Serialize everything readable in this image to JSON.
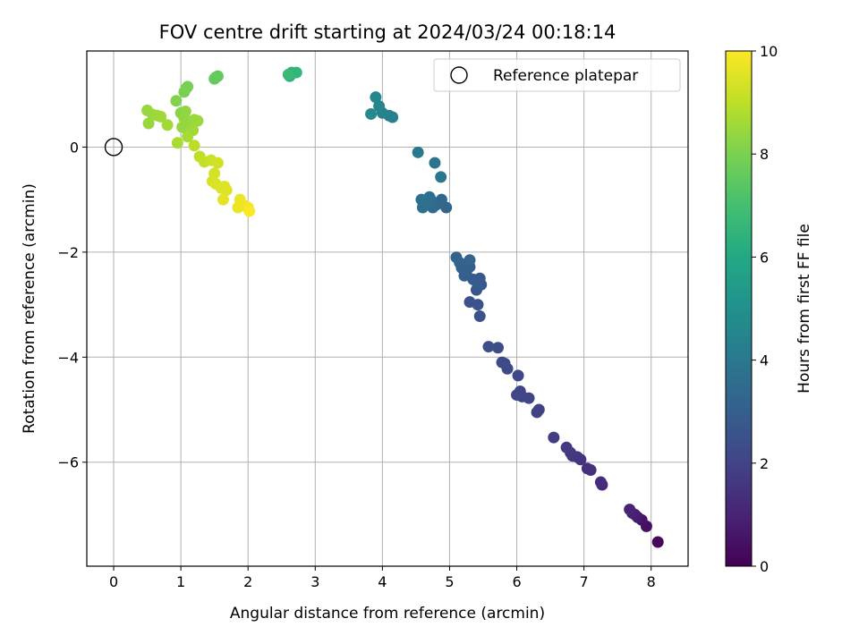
{
  "chart_data": {
    "type": "scatter",
    "title": "FOV centre drift starting at 2024/03/24 00:18:14",
    "xlabel": "Angular distance from reference (arcmin)",
    "ylabel": "Rotation from reference (arcmin)",
    "xlim": [
      -0.4,
      8.55
    ],
    "ylim": [
      -7.98,
      1.83
    ],
    "xticks": [
      0,
      1,
      2,
      3,
      4,
      5,
      6,
      7,
      8
    ],
    "yticks": [
      -6,
      -4,
      -2,
      0
    ],
    "grid": true,
    "legend": {
      "placement": "top-right",
      "entries": [
        "Reference platepar"
      ]
    },
    "reference_point": {
      "x": 0,
      "y": 0
    },
    "colorbar": {
      "label": "Hours from first FF file",
      "min": 0,
      "max": 10,
      "ticks": [
        0,
        2,
        4,
        6,
        8,
        10
      ],
      "colormap": "viridis"
    },
    "series": [
      {
        "x": [
          8.1,
          7.93,
          7.86,
          7.8,
          7.76,
          7.72,
          7.68,
          7.27,
          7.25,
          7.1,
          7.05,
          6.95,
          6.9,
          6.83,
          6.8,
          6.74,
          6.55
        ],
        "y": [
          -7.52,
          -7.22,
          -7.1,
          -7.05,
          -7.0,
          -6.97,
          -6.9,
          -6.43,
          -6.38,
          -6.15,
          -6.12,
          -5.95,
          -5.9,
          -5.88,
          -5.82,
          -5.72,
          -5.53
        ],
        "hours": [
          0.2,
          0.4,
          0.55,
          0.7,
          0.8,
          0.9,
          1.0,
          1.2,
          1.25,
          1.35,
          1.4,
          1.5,
          1.55,
          1.6,
          1.65,
          1.7,
          1.8
        ]
      },
      {
        "x": [
          6.33,
          6.3,
          6.18,
          6.08,
          6.05,
          6.0,
          6.02,
          5.86,
          5.82,
          5.78,
          5.72,
          5.58,
          5.45,
          5.42,
          5.4,
          5.3,
          5.47,
          5.45,
          5.42,
          5.4,
          5.35,
          5.3,
          5.25,
          5.22,
          5.18,
          5.15,
          5.1
        ],
        "y": [
          -5.0,
          -5.05,
          -4.78,
          -4.75,
          -4.65,
          -4.72,
          -4.35,
          -4.22,
          -4.12,
          -4.1,
          -3.82,
          -3.8,
          -3.22,
          -3.0,
          -2.72,
          -2.95,
          -2.62,
          -2.5,
          -2.65,
          -2.55,
          -2.52,
          -2.28,
          -2.38,
          -2.45,
          -2.3,
          -2.2,
          -2.1
        ],
        "hours": [
          1.9,
          1.95,
          2.0,
          2.05,
          2.1,
          2.1,
          2.15,
          2.2,
          2.25,
          2.3,
          2.35,
          2.4,
          2.5,
          2.55,
          2.6,
          2.6,
          2.7,
          2.75,
          2.8,
          2.85,
          2.9,
          2.95,
          3.0,
          3.0,
          3.05,
          3.1,
          3.15
        ]
      },
      {
        "x": [
          5.3,
          4.95,
          4.88,
          4.8,
          4.75,
          4.72,
          4.7,
          4.65,
          4.6,
          4.58,
          4.78,
          4.87,
          4.53,
          4.15,
          4.1,
          4.0,
          3.95,
          3.9,
          3.83
        ],
        "y": [
          -2.15,
          -1.15,
          -1.0,
          -1.1,
          -1.15,
          -1.0,
          -0.95,
          -1.05,
          -1.15,
          -1.0,
          -0.3,
          -0.57,
          -0.1,
          0.57,
          0.6,
          0.65,
          0.78,
          0.95,
          0.63
        ],
        "hours": [
          3.2,
          3.3,
          3.35,
          3.4,
          3.45,
          3.5,
          3.55,
          3.6,
          3.65,
          3.7,
          3.8,
          3.9,
          4.0,
          4.2,
          4.3,
          4.4,
          4.5,
          4.6,
          4.7
        ]
      },
      {
        "x": [
          2.62,
          2.65,
          2.72,
          2.6,
          1.52,
          1.55,
          1.5,
          1.1,
          1.08,
          1.05
        ],
        "y": [
          1.35,
          1.42,
          1.42,
          1.38,
          1.33,
          1.35,
          1.3,
          1.15,
          1.12,
          1.05
        ],
        "hours": [
          6.2,
          6.3,
          6.5,
          6.7,
          7.5,
          7.55,
          7.6,
          7.9,
          7.95,
          8.0
        ]
      },
      {
        "x": [
          0.93,
          1.0,
          1.05,
          1.12,
          1.2,
          1.25,
          1.18,
          1.1,
          0.95,
          0.8,
          0.7,
          0.65,
          0.58,
          0.5,
          0.52,
          1.02,
          1.07
        ],
        "y": [
          0.88,
          0.65,
          0.55,
          0.48,
          0.52,
          0.5,
          0.32,
          0.2,
          0.08,
          0.42,
          0.58,
          0.6,
          0.62,
          0.7,
          0.45,
          0.38,
          0.68
        ],
        "hours": [
          8.1,
          8.2,
          8.3,
          8.4,
          8.45,
          8.5,
          8.6,
          8.65,
          8.7,
          8.6,
          8.55,
          8.55,
          8.5,
          8.45,
          8.45,
          8.4,
          8.35
        ]
      },
      {
        "x": [
          1.2,
          1.28,
          1.35,
          1.45,
          1.55,
          1.5,
          1.47,
          1.52,
          1.65,
          1.68,
          1.63,
          1.6,
          1.88,
          1.92,
          1.95,
          2.0,
          2.02,
          1.85
        ],
        "y": [
          0.03,
          -0.18,
          -0.28,
          -0.25,
          -0.3,
          -0.5,
          -0.65,
          -0.7,
          -0.75,
          -0.82,
          -1.0,
          -0.78,
          -1.0,
          -1.1,
          -1.12,
          -1.15,
          -1.22,
          -1.15
        ],
        "hours": [
          8.95,
          9.0,
          9.1,
          9.2,
          9.3,
          9.35,
          9.4,
          9.45,
          9.5,
          9.55,
          9.6,
          9.5,
          9.7,
          9.75,
          9.8,
          9.85,
          9.95,
          9.7
        ]
      }
    ]
  }
}
